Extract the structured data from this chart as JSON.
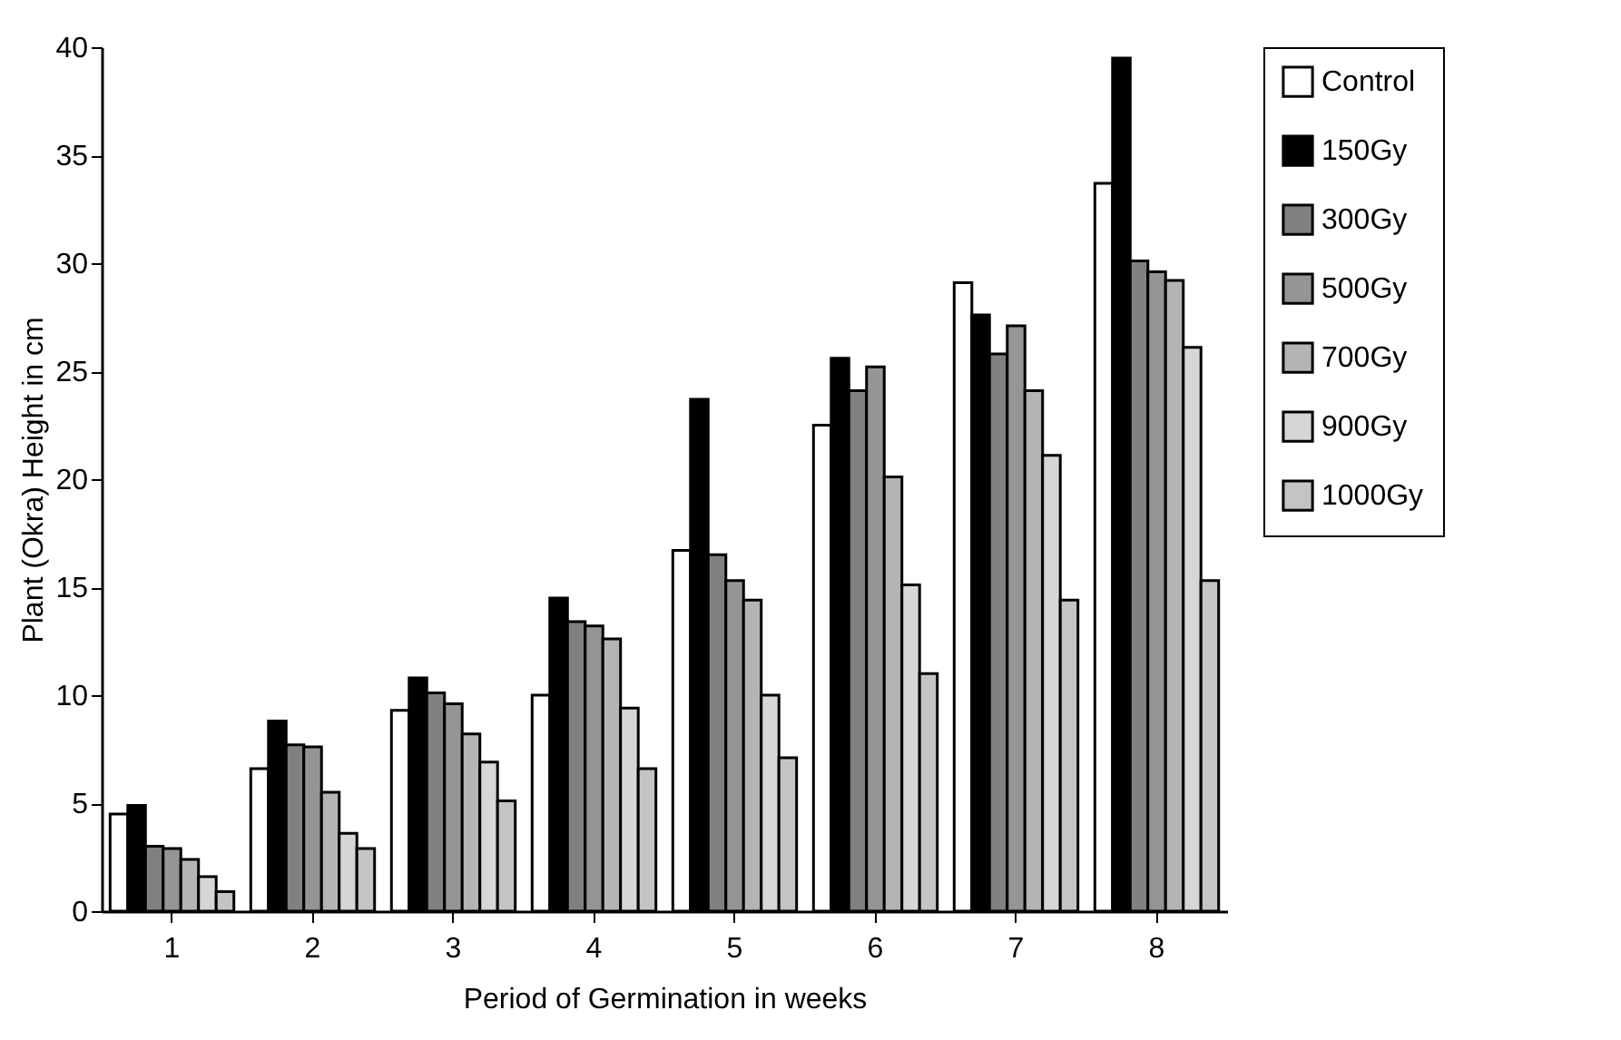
{
  "chart_data": {
    "type": "bar",
    "xlabel": "Period of Germination in weeks",
    "ylabel": "Plant (Okra) Height in cm",
    "categories": [
      "1",
      "2",
      "3",
      "4",
      "5",
      "6",
      "7",
      "8"
    ],
    "series": [
      {
        "name": "Control",
        "color": "#ffffff",
        "values": [
          4.5,
          6.6,
          9.3,
          10.0,
          16.7,
          22.5,
          29.1,
          33.7
        ]
      },
      {
        "name": "150Gy",
        "color": "#000000",
        "values": [
          4.9,
          8.8,
          10.8,
          14.5,
          23.7,
          25.6,
          27.6,
          39.5
        ]
      },
      {
        "name": "300Gy",
        "color": "#808080",
        "values": [
          3.0,
          7.7,
          10.1,
          13.4,
          16.5,
          24.1,
          25.8,
          30.1
        ]
      },
      {
        "name": "500Gy",
        "color": "#959595",
        "values": [
          2.9,
          7.6,
          9.6,
          13.2,
          15.3,
          25.2,
          27.1,
          29.6
        ]
      },
      {
        "name": "700Gy",
        "color": "#b4b4b4",
        "values": [
          2.4,
          5.5,
          8.2,
          12.6,
          14.4,
          20.1,
          24.1,
          29.2
        ]
      },
      {
        "name": "900Gy",
        "color": "#d6d6d6",
        "values": [
          1.6,
          3.6,
          6.9,
          9.4,
          10.0,
          15.1,
          21.1,
          26.1
        ]
      },
      {
        "name": "1000Gy",
        "color": "#c4c4c4",
        "values": [
          0.9,
          2.9,
          5.1,
          6.6,
          7.1,
          11.0,
          14.4,
          15.3
        ]
      }
    ],
    "ylim": [
      0,
      40
    ],
    "yticks": [
      0,
      5,
      10,
      15,
      20,
      25,
      30,
      35,
      40
    ],
    "grid": false,
    "legend": "right"
  }
}
